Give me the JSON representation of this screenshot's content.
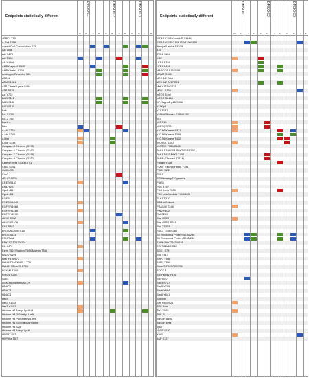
{
  "left": {
    "title": "Endpoints statistically different",
    "groups": [
      "DMSO C1",
      "DMSO C2",
      "DMSO C3"
    ],
    "columns": [
      "5",
      "6",
      "7",
      "8",
      "5",
      "6",
      "7",
      "8",
      "5",
      "6",
      "7",
      "8"
    ],
    "rows": [
      {
        "label": "4EBP1 T70",
        "cells": []
      },
      {
        "label": "A-Raf S299",
        "cells": []
      },
      {
        "label": "Acetyl-CoA Carboxylase S79",
        "cells": [
          {
            "c": 2,
            "v": "blue"
          },
          {
            "c": 4,
            "v": "blue"
          },
          {
            "c": 7,
            "v": "green"
          },
          {
            "c": 9,
            "v": "blue"
          },
          {
            "c": 10,
            "v": "green"
          }
        ]
      },
      {
        "label": "Akt Total",
        "cells": []
      },
      {
        "label": "Akt S473",
        "cells": []
      },
      {
        "label": "Akt T308",
        "cells": [
          {
            "c": 0,
            "v": "blue"
          },
          {
            "c": 3,
            "v": "blue"
          },
          {
            "c": 6,
            "v": "red"
          },
          {
            "c": 9,
            "v": "blue"
          }
        ]
      },
      {
        "label": "Alk Y1604",
        "cells": []
      },
      {
        "label": "AMPK alpha1 S485",
        "cells": [
          {
            "c": 2,
            "v": "blue"
          },
          {
            "c": 7,
            "v": "green"
          },
          {
            "c": 10,
            "v": "red"
          }
        ]
      },
      {
        "label": "AMPK beta1 S108",
        "cells": [
          {
            "c": 3,
            "v": "green"
          },
          {
            "c": 7,
            "v": "green"
          },
          {
            "c": 10,
            "v": "green"
          }
        ]
      },
      {
        "label": "Androgen Receptor S81",
        "cells": [
          {
            "c": 3,
            "v": "green"
          },
          {
            "c": 7,
            "v": "green"
          },
          {
            "c": 10,
            "v": "red"
          }
        ]
      },
      {
        "label": "ATG12",
        "cells": []
      },
      {
        "label": "ATM S1981",
        "cells": []
      },
      {
        "label": "ATP Citrate Lyase S454",
        "cells": []
      },
      {
        "label": "ATR S428",
        "cells": []
      },
      {
        "label": "Axl Y702",
        "cells": []
      },
      {
        "label": "BAD S112",
        "cells": [
          {
            "c": 3,
            "v": "green"
          },
          {
            "c": 7,
            "v": "green"
          },
          {
            "c": 10,
            "v": "green"
          }
        ]
      },
      {
        "label": "BAD S136",
        "cells": [
          {
            "c": 3,
            "v": "green"
          },
          {
            "c": 7,
            "v": "green"
          },
          {
            "c": 10,
            "v": "green"
          }
        ]
      },
      {
        "label": "BAD S155",
        "cells": []
      },
      {
        "label": "Bak",
        "cells": []
      },
      {
        "label": "Bcl-2 S70",
        "cells": []
      },
      {
        "label": "Bcl-2 T56",
        "cells": []
      },
      {
        "label": "Beclin1",
        "cells": []
      },
      {
        "label": "Bim",
        "cells": [
          {
            "c": 0,
            "v": "blue"
          },
          {
            "c": 6,
            "v": "red"
          }
        ]
      },
      {
        "label": "c-Abl T735",
        "cells": [
          {
            "c": 0,
            "v": "orange"
          },
          {
            "c": 1,
            "v": "blue"
          },
          {
            "c": 7,
            "v": "blue"
          }
        ]
      },
      {
        "label": "c-Abl Y245",
        "cells": []
      },
      {
        "label": "c-Met",
        "cells": [
          {
            "c": 0,
            "v": "orange"
          },
          {
            "c": 5,
            "v": "green"
          }
        ]
      },
      {
        "label": "c-Raf S338",
        "cells": [
          {
            "c": 0,
            "v": "orange"
          },
          {
            "c": 5,
            "v": "green"
          }
        ]
      },
      {
        "label": "Caspase-3 Cleaved (D175)",
        "cells": []
      },
      {
        "label": "Caspase-6 Cleaved (D162)",
        "cells": []
      },
      {
        "label": "Caspase-7 Cleaved (D198)",
        "cells": []
      },
      {
        "label": "Caspase-9 Cleaved (D330)",
        "cells": []
      },
      {
        "label": "Catenin beta S33/37/T41",
        "cells": []
      },
      {
        "label": "Chk1 S345",
        "cells": []
      },
      {
        "label": "Cofilin S3",
        "cells": []
      },
      {
        "label": "Cox2",
        "cells": [
          {
            "c": 6,
            "v": "red"
          }
        ]
      },
      {
        "label": "cPLA2 S505",
        "cells": []
      },
      {
        "label": "CREB S133",
        "cells": [
          {
            "c": 0,
            "v": "orange"
          },
          {
            "c": 7,
            "v": "blue"
          }
        ]
      },
      {
        "label": "CrkL Y207",
        "cells": []
      },
      {
        "label": "Cyclin B1",
        "cells": []
      },
      {
        "label": "Cyclin D1",
        "cells": []
      },
      {
        "label": "EGFR",
        "cells": []
      },
      {
        "label": "EGFR Y1045",
        "cells": [
          {
            "c": 0,
            "v": "orange"
          }
        ]
      },
      {
        "label": "EGFR Y1068",
        "cells": []
      },
      {
        "label": "EGFR Y1148",
        "cells": [
          {
            "c": 0,
            "v": "orange"
          }
        ]
      },
      {
        "label": "EGFR Y1173",
        "cells": [
          {
            "c": 6,
            "v": "blue"
          }
        ]
      },
      {
        "label": "eIF4E S209",
        "cells": []
      },
      {
        "label": "eIF4G S1108",
        "cells": [
          {
            "c": 0,
            "v": "orange"
          },
          {
            "c": 7,
            "v": "blue"
          }
        ]
      },
      {
        "label": "Elk1 S383",
        "cells": []
      },
      {
        "label": "eNOS/NOS III S116",
        "cells": [
          {
            "c": 2,
            "v": "blue"
          },
          {
            "c": 7,
            "v": "green"
          }
        ]
      },
      {
        "label": "eNOS S113",
        "cells": []
      },
      {
        "label": "ERK Total",
        "cells": [
          {
            "c": 2,
            "v": "blue"
          },
          {
            "c": 7,
            "v": "green"
          },
          {
            "c": 9,
            "v": "blue"
          }
        ]
      },
      {
        "label": "ERK 1/2 T202/Y204",
        "cells": []
      },
      {
        "label": "Etk Y40",
        "cells": [
          {
            "c": 0,
            "v": "orange"
          }
        ]
      },
      {
        "label": "Ezrin T567/Radixin T564/Moesin T558",
        "cells": []
      },
      {
        "label": "FADD S194",
        "cells": []
      },
      {
        "label": "FAK Y576/577",
        "cells": [
          {
            "c": 0,
            "v": "orange"
          }
        ]
      },
      {
        "label": "FKHR T24/FKHRL1 T32",
        "cells": []
      },
      {
        "label": "FKHRL1/FoxO3 S253",
        "cells": []
      },
      {
        "label": "FOXM1 T600",
        "cells": [
          {
            "c": 0,
            "v": "orange"
          }
        ]
      },
      {
        "label": "FoxO1 S256",
        "cells": []
      },
      {
        "label": "Gab1",
        "cells": []
      },
      {
        "label": "GSK 3alpha/beta S21/9",
        "cells": [
          {
            "c": 0,
            "v": "orange"
          },
          {
            "c": 7,
            "v": "blue"
          }
        ]
      },
      {
        "label": "HDAC1",
        "cells": []
      },
      {
        "label": "HDAC3",
        "cells": []
      },
      {
        "label": "HDAC4",
        "cells": []
      },
      {
        "label": "Her2",
        "cells": []
      },
      {
        "label": "Her2 Y1248",
        "cells": []
      },
      {
        "label": "Her3 Y1197",
        "cells": [
          {
            "c": 0,
            "v": "orange"
          }
        ]
      },
      {
        "label": "Histone H3 Acetyl Lys9/14",
        "cells": [
          {
            "c": 0,
            "v": "orange"
          },
          {
            "c": 5,
            "v": "green"
          },
          {
            "c": 10,
            "v": "green"
          }
        ]
      },
      {
        "label": "Histone H3 Di-Methyl Lys9",
        "cells": []
      },
      {
        "label": "Histone H3 Pan-Methyl Lys9",
        "cells": []
      },
      {
        "label": "Histone H3 S10 Mitosis Marker",
        "cells": []
      },
      {
        "label": "Histone H3 S28",
        "cells": []
      },
      {
        "label": "Histone H4 Acetyl Lys8",
        "cells": []
      },
      {
        "label": "HSP27 S82",
        "cells": []
      },
      {
        "label": "HSP90a T5/7",
        "cells": []
      }
    ]
  },
  "right": {
    "title": "Endpoints statistically different",
    "groups": [
      "DMSO C1",
      "DMSO C2",
      "DMSO C3"
    ],
    "columns": [
      "5",
      "6",
      "7",
      "8",
      "5",
      "6",
      "7",
      "8",
      "5",
      "6",
      "7",
      "8"
    ],
    "rows": [
      {
        "label": "IGF1R Y1131/InsulinR Y1146",
        "cells": []
      },
      {
        "label": "IGF1R Y1135/1136 IR Y1150/1151",
        "cells": [
          {
            "c": 2,
            "v": "blue"
          },
          {
            "c": 3,
            "v": "green"
          },
          {
            "c": 10,
            "v": "blue"
          }
        ]
      },
      {
        "label": "IKappaB alpha S32/36",
        "cells": []
      },
      {
        "label": "IL-6",
        "cells": []
      },
      {
        "label": "IRS-1 S612",
        "cells": []
      },
      {
        "label": "Ki67",
        "cells": [
          {
            "c": 0,
            "v": "orange"
          },
          {
            "c": 4,
            "v": "red"
          }
        ]
      },
      {
        "label": "LKB1 S334",
        "cells": [
          {
            "c": 4,
            "v": "green"
          }
        ]
      },
      {
        "label": "LKB1 S428",
        "cells": [
          {
            "c": 4,
            "v": "green"
          },
          {
            "c": 7,
            "v": "green"
          }
        ]
      },
      {
        "label": "MARCKS S152/156",
        "cells": [
          {
            "c": 0,
            "v": "orange"
          },
          {
            "c": 4,
            "v": "green"
          },
          {
            "c": 7,
            "v": "green"
          }
        ]
      },
      {
        "label": "MDM2 S166",
        "cells": []
      },
      {
        "label": "MEK 1/2 Total",
        "cells": []
      },
      {
        "label": "MEK 1/2 S217/221",
        "cells": [
          {
            "c": 4,
            "v": "green"
          },
          {
            "c": 7,
            "v": "green"
          }
        ]
      },
      {
        "label": "Met Y1234/1235",
        "cells": []
      },
      {
        "label": "MSK1 S360",
        "cells": [
          {
            "c": 0,
            "v": "orange"
          },
          {
            "c": 10,
            "v": "blue"
          }
        ]
      },
      {
        "label": "mTOR Total",
        "cells": []
      },
      {
        "label": "mTOR S2448",
        "cells": []
      },
      {
        "label": "NF-KappaB p65 S536",
        "cells": []
      },
      {
        "label": "p27Kip1",
        "cells": []
      },
      {
        "label": "p27 T187",
        "cells": []
      },
      {
        "label": "p38MAPKinase T180/Y182",
        "cells": []
      },
      {
        "label": "p53",
        "cells": []
      },
      {
        "label": "p53 S15",
        "cells": [
          {
            "c": 0,
            "v": "orange"
          },
          {
            "c": 5,
            "v": "red"
          }
        ]
      },
      {
        "label": "p62/SQSTM1",
        "cells": [
          {
            "c": 0,
            "v": "orange"
          },
          {
            "c": 5,
            "v": "red"
          }
        ]
      },
      {
        "label": "p70 S6 Kinase S371",
        "cells": [
          {
            "c": 0,
            "v": "orange"
          },
          {
            "c": 7,
            "v": "red"
          },
          {
            "c": 9,
            "v": "blue"
          }
        ]
      },
      {
        "label": "p70 S6 Kinase T389",
        "cells": [
          {
            "c": 7,
            "v": "green"
          },
          {
            "c": 9,
            "v": "green"
          }
        ]
      },
      {
        "label": "p70 S6 Kinase T412",
        "cells": [
          {
            "c": 7,
            "v": "red"
          },
          {
            "c": 8,
            "v": "red"
          }
        ]
      },
      {
        "label": "p90RSK S380",
        "cells": [
          {
            "c": 0,
            "v": "orange"
          },
          {
            "c": 8,
            "v": "red"
          }
        ]
      },
      {
        "label": "p90RSK T359/S363",
        "cells": []
      },
      {
        "label": "PAK1 S199/204 PAK2 S192/197",
        "cells": []
      },
      {
        "label": "PAK1 T423 PAK2 T402",
        "cells": [
          {
            "c": 5,
            "v": "red"
          }
        ]
      },
      {
        "label": "PARP (Cleaved (D214)",
        "cells": [
          {
            "c": 5,
            "v": "red"
          }
        ]
      },
      {
        "label": "Paxillin Y118",
        "cells": [
          {
            "c": 7,
            "v": "red"
          }
        ]
      },
      {
        "label": "PDGF Receptor beta Y751",
        "cells": []
      },
      {
        "label": "PDK1 S241",
        "cells": []
      },
      {
        "label": "PDL1",
        "cells": []
      },
      {
        "label": "PI3-Kinase p110gamma",
        "cells": []
      },
      {
        "label": "PIAS1",
        "cells": []
      },
      {
        "label": "PKC T197",
        "cells": []
      },
      {
        "label": "PKC theta T538",
        "cells": [
          {
            "c": 0,
            "v": "orange"
          },
          {
            "c": 7,
            "v": "red"
          }
        ]
      },
      {
        "label": "PKC zeta/lambda T410/403",
        "cells": []
      },
      {
        "label": "PLK1 T210",
        "cells": []
      },
      {
        "label": "PPIA a Subunit",
        "cells": []
      },
      {
        "label": "PRAS40 T246",
        "cells": [
          {
            "c": 0,
            "v": "orange"
          }
        ]
      },
      {
        "label": "Pyk2 Y402",
        "cells": []
      },
      {
        "label": "Raf S259",
        "cells": []
      },
      {
        "label": "Ras-GRF1",
        "cells": [
          {
            "c": 0,
            "v": "orange"
          }
        ]
      },
      {
        "label": "Ras-GRF1 S916",
        "cells": []
      },
      {
        "label": "Ron Y1353",
        "cells": []
      },
      {
        "label": "RSK3 T356/S360",
        "cells": []
      },
      {
        "label": "S6 Ribosomal Protein S235/236",
        "cells": [
          {
            "c": 2,
            "v": "blue"
          },
          {
            "c": 3,
            "v": "green"
          },
          {
            "c": 7,
            "v": "green"
          },
          {
            "c": 9,
            "v": "blue"
          }
        ]
      },
      {
        "label": "S6 Ribosomal Protein S240/244",
        "cells": [
          {
            "c": 2,
            "v": "blue"
          },
          {
            "c": 3,
            "v": "green"
          },
          {
            "c": 7,
            "v": "green"
          },
          {
            "c": 9,
            "v": "blue"
          }
        ]
      },
      {
        "label": "SAPK/JNK T183/Y185",
        "cells": []
      },
      {
        "label": "SEK1/MKK4 S80",
        "cells": []
      },
      {
        "label": "SGK1 S78",
        "cells": []
      },
      {
        "label": "Shc Y317",
        "cells": []
      },
      {
        "label": "SHP1 Y536",
        "cells": []
      },
      {
        "label": "SHP2 Y580",
        "cells": []
      },
      {
        "label": "Smad2 S245/250/255",
        "cells": []
      },
      {
        "label": "SOCS 3",
        "cells": []
      },
      {
        "label": "Src Family Y416",
        "cells": []
      },
      {
        "label": "Src Y527",
        "cells": [
          {
            "c": 2,
            "v": "blue"
          }
        ]
      },
      {
        "label": "Stat3 S727",
        "cells": []
      },
      {
        "label": "Stat5 Y705",
        "cells": []
      },
      {
        "label": "Stat6 Y694",
        "cells": []
      },
      {
        "label": "Stat6 Y641",
        "cells": []
      },
      {
        "label": "Survivin",
        "cells": []
      },
      {
        "label": "Syk Y525/526",
        "cells": [
          {
            "c": 0,
            "v": "orange"
          }
        ]
      },
      {
        "label": "TGF Beta",
        "cells": []
      },
      {
        "label": "Tie2 Y992",
        "cells": [
          {
            "c": 0,
            "v": "orange"
          }
        ]
      },
      {
        "label": "TNF-R1",
        "cells": []
      },
      {
        "label": "Tubulin alpha",
        "cells": []
      },
      {
        "label": "Tubulin beta",
        "cells": []
      },
      {
        "label": "Tyk2",
        "cells": []
      },
      {
        "label": "VASP S157",
        "cells": []
      },
      {
        "label": "XIAP",
        "cells": [
          {
            "c": 0,
            "v": "orange"
          },
          {
            "c": 10,
            "v": "blue"
          }
        ]
      },
      {
        "label": "YAP S127",
        "cells": []
      }
    ]
  },
  "colors": {
    "blue": "#2b57b6",
    "red": "#c7141a",
    "green": "#4c8c2b",
    "orange": "#f2a36c",
    "grid": "#9a9a9a",
    "row_alt": "#eeeeee"
  }
}
